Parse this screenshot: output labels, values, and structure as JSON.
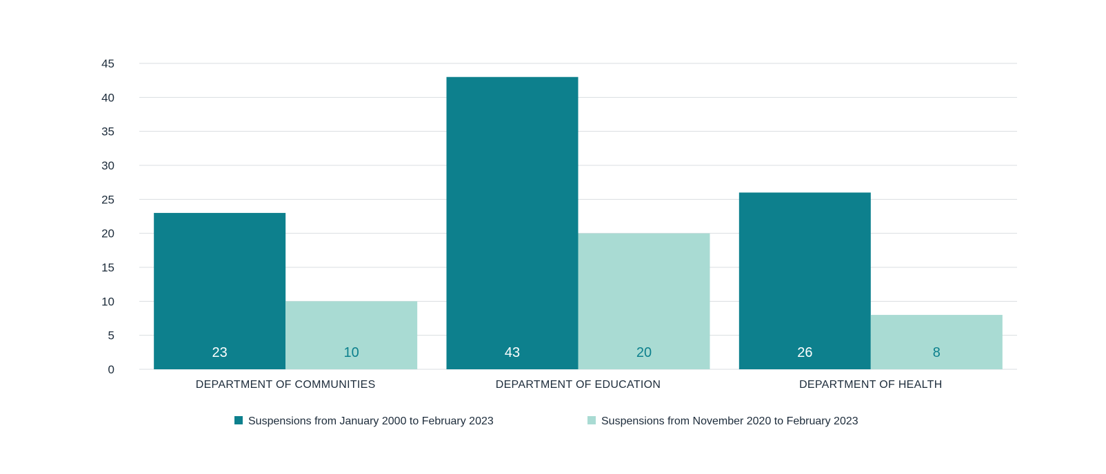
{
  "chart_data": {
    "type": "bar",
    "categories": [
      "DEPARTMENT OF COMMUNITIES",
      "DEPARTMENT OF EDUCATION",
      "DEPARTMENT OF HEALTH"
    ],
    "series": [
      {
        "name": "Suspensions from January 2000 to February 2023",
        "values": [
          23,
          43,
          26
        ],
        "color": "#0d808d",
        "label_color": "#ffffff"
      },
      {
        "name": "Suspensions from November 2020 to February 2023",
        "values": [
          10,
          20,
          8
        ],
        "color": "#a9dbd3",
        "label_color": "#0d808d"
      }
    ],
    "yticks": [
      0,
      5,
      10,
      15,
      20,
      25,
      30,
      35,
      40,
      45
    ],
    "ylim": [
      0,
      45
    ],
    "grid": true,
    "legend": "bottom",
    "title": "",
    "xlabel": "",
    "ylabel": ""
  }
}
